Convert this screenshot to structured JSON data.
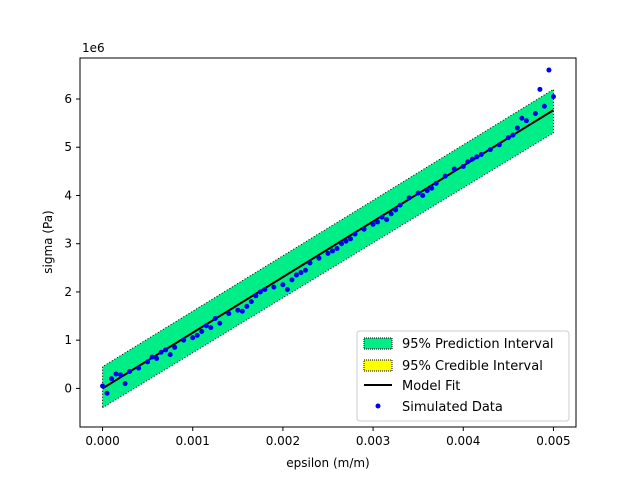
{
  "chart_data": {
    "type": "scatter",
    "xlabel": "epsilon (m/m)",
    "ylabel": "sigma (Pa)",
    "y_offset_label": "1e6",
    "xlim": [
      -0.00025,
      0.00525
    ],
    "ylim": [
      -0.8,
      6.85
    ],
    "x_ticks": [
      0.0,
      0.001,
      0.002,
      0.003,
      0.004,
      0.005
    ],
    "x_tick_labels": [
      "0.000",
      "0.001",
      "0.002",
      "0.003",
      "0.004",
      "0.005"
    ],
    "y_ticks": [
      0,
      1,
      2,
      3,
      4,
      5,
      6
    ],
    "y_tick_labels": [
      "0",
      "1",
      "2",
      "3",
      "4",
      "5",
      "6"
    ],
    "grid": false,
    "legend_position": "lower-right",
    "model_fit": {
      "x": [
        0.0,
        0.005
      ],
      "y": [
        0.0,
        5.77
      ]
    },
    "prediction_interval": {
      "x": [
        0.0,
        0.005
      ],
      "lower": [
        -0.4,
        5.3
      ],
      "upper": [
        0.45,
        6.2
      ],
      "color": "#00ee88"
    },
    "credible_interval": {
      "color": "#ffff00"
    },
    "simulated_data": {
      "x": [
        0.0,
        0.0001,
        0.0002,
        0.0003,
        0.0004,
        0.0005,
        0.0006,
        0.0007,
        0.0008,
        0.0009,
        0.001,
        0.0011,
        0.0012,
        0.0013,
        0.0014,
        0.0015,
        0.0016,
        0.0017,
        0.0018,
        0.0019,
        0.002,
        0.0021,
        0.0022,
        0.0023,
        0.0024,
        0.0025,
        0.0026,
        0.0027,
        0.0028,
        0.0029,
        0.003,
        0.0031,
        0.0032,
        0.0033,
        0.0034,
        0.0035,
        0.0036,
        0.0037,
        0.0038,
        0.0039,
        0.004,
        0.0041,
        0.0042,
        0.0043,
        0.0044,
        0.0045,
        0.0046,
        0.0047,
        0.0048,
        0.0049,
        0.005,
        5e-05,
        0.00055,
        0.00105,
        0.00155,
        0.00205,
        0.00255,
        0.00305,
        0.00355,
        0.00405,
        0.00455,
        0.00495,
        0.00015,
        0.00065,
        0.00115,
        0.00165,
        0.00215,
        0.00265,
        0.00315,
        0.00365,
        0.00415,
        0.00465,
        0.00485,
        0.00025,
        0.00075,
        0.00125,
        0.00175,
        0.00225,
        0.00275,
        0.00325
      ],
      "y": [
        0.05,
        0.2,
        0.28,
        0.35,
        0.42,
        0.55,
        0.62,
        0.8,
        0.85,
        1.0,
        1.05,
        1.18,
        1.26,
        1.35,
        1.55,
        1.62,
        1.7,
        1.92,
        2.05,
        2.1,
        2.15,
        2.25,
        2.4,
        2.6,
        2.7,
        2.8,
        2.9,
        3.05,
        3.2,
        3.3,
        3.4,
        3.55,
        3.62,
        3.8,
        3.95,
        4.05,
        4.1,
        4.25,
        4.4,
        4.55,
        4.6,
        4.75,
        4.85,
        4.95,
        5.05,
        5.2,
        5.4,
        5.55,
        5.7,
        5.85,
        6.05,
        -0.1,
        0.65,
        1.1,
        1.6,
        2.05,
        2.85,
        3.45,
        4.0,
        4.7,
        5.25,
        6.6,
        0.3,
        0.75,
        1.3,
        1.8,
        2.35,
        3.0,
        3.5,
        4.15,
        4.8,
        5.6,
        6.2,
        0.1,
        0.7,
        1.45,
        2.0,
        2.45,
        3.1,
        3.7
      ]
    }
  },
  "legend": {
    "items": [
      {
        "label": "95% Prediction Interval",
        "kind": "patch",
        "color": "#00ee88"
      },
      {
        "label": "95% Credible Interval",
        "kind": "patch",
        "color": "#ffff00"
      },
      {
        "label": "Model Fit",
        "kind": "line",
        "color": "#000000"
      },
      {
        "label": "Simulated Data",
        "kind": "dot",
        "color": "#0000ee"
      }
    ]
  }
}
